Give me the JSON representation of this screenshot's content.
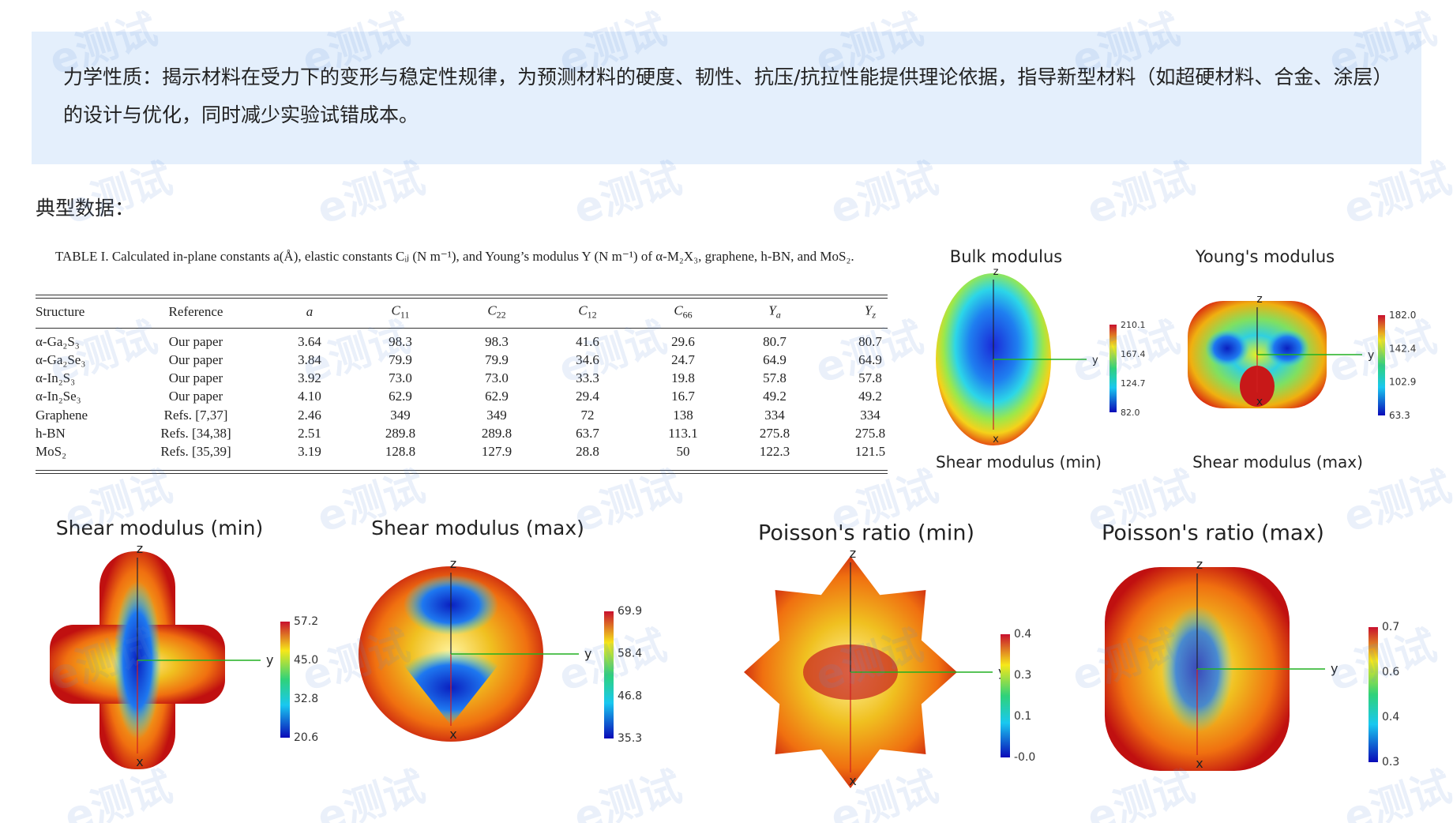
{
  "intro": "力学性质：揭示材料在受力下的变形与稳定性规律，为预测材料的硬度、韧性、抗压/抗拉性能提供理论依据，指导新型材料（如超硬材料、合金、涂层）的设计与优化，同时减少实验试错成本。",
  "section_label": "典型数据：",
  "table": {
    "caption": "TABLE I. Calculated in-plane constants a(Å), elastic constants Cᵢⱼ (N m⁻¹), and Young’s modulus Y (N m⁻¹) of α-M₂X₃, graphene, h-BN, and MoS₂.",
    "header": [
      "Structure",
      "Reference",
      "a",
      {
        "main": "C",
        "sub": "11"
      },
      {
        "main": "C",
        "sub": "22"
      },
      {
        "main": "C",
        "sub": "12"
      },
      {
        "main": "C",
        "sub": "66"
      },
      {
        "main": "Y",
        "sub": "a"
      },
      {
        "main": "Y",
        "sub": "z"
      }
    ],
    "rows": [
      [
        "α-Ga₂S₃",
        "Our paper",
        "3.64",
        "98.3",
        "98.3",
        "41.6",
        "29.6",
        "80.7",
        "80.7"
      ],
      [
        "α-Ga₂Se₃",
        "Our paper",
        "3.84",
        "79.9",
        "79.9",
        "34.6",
        "24.7",
        "64.9",
        "64.9"
      ],
      [
        "α-In₂S₃",
        "Our paper",
        "3.92",
        "73.0",
        "73.0",
        "33.3",
        "19.8",
        "57.8",
        "57.8"
      ],
      [
        "α-In₂Se₃",
        "Our paper",
        "4.10",
        "62.9",
        "62.9",
        "29.4",
        "16.7",
        "49.2",
        "49.2"
      ],
      [
        "Graphene",
        "Refs. [7,37]",
        "2.46",
        "349",
        "349",
        "72",
        "138",
        "334",
        "334"
      ],
      [
        "h-BN",
        "Refs. [34,38]",
        "2.51",
        "289.8",
        "289.8",
        "63.7",
        "113.1",
        "275.8",
        "275.8"
      ],
      [
        "MoS₂",
        "Refs. [35,39]",
        "3.19",
        "128.8",
        "127.9",
        "28.8",
        "50",
        "122.3",
        "121.5"
      ]
    ]
  },
  "figures": [
    {
      "title": "Bulk modulus",
      "colorbar": [
        "210.1",
        "167.4",
        "124.7",
        "82.0"
      ]
    },
    {
      "title": "Young's modulus",
      "colorbar": [
        "182.0",
        "142.4",
        "102.9",
        "63.3"
      ]
    },
    {
      "title": "Shear modulus (min)",
      "colorbar": [
        "57.2",
        "45.0",
        "32.8",
        "20.6"
      ]
    },
    {
      "title": "Shear modulus (max)",
      "colorbar": [
        "69.9",
        "58.4",
        "46.8",
        "35.3"
      ]
    },
    {
      "title": "Poisson's ratio (min)",
      "colorbar": [
        "0.4",
        "0.3",
        "0.1",
        "-0.0"
      ]
    },
    {
      "title": "Poisson's ratio (max)",
      "colorbar": [
        "0.7",
        "0.6",
        "0.4",
        "0.3"
      ]
    }
  ],
  "cropped_captions": [
    "Shear modulus (min)",
    "Shear modulus (max)"
  ],
  "axis_labels": {
    "x": "x",
    "y": "y",
    "z": "z"
  },
  "watermark": "e测试"
}
